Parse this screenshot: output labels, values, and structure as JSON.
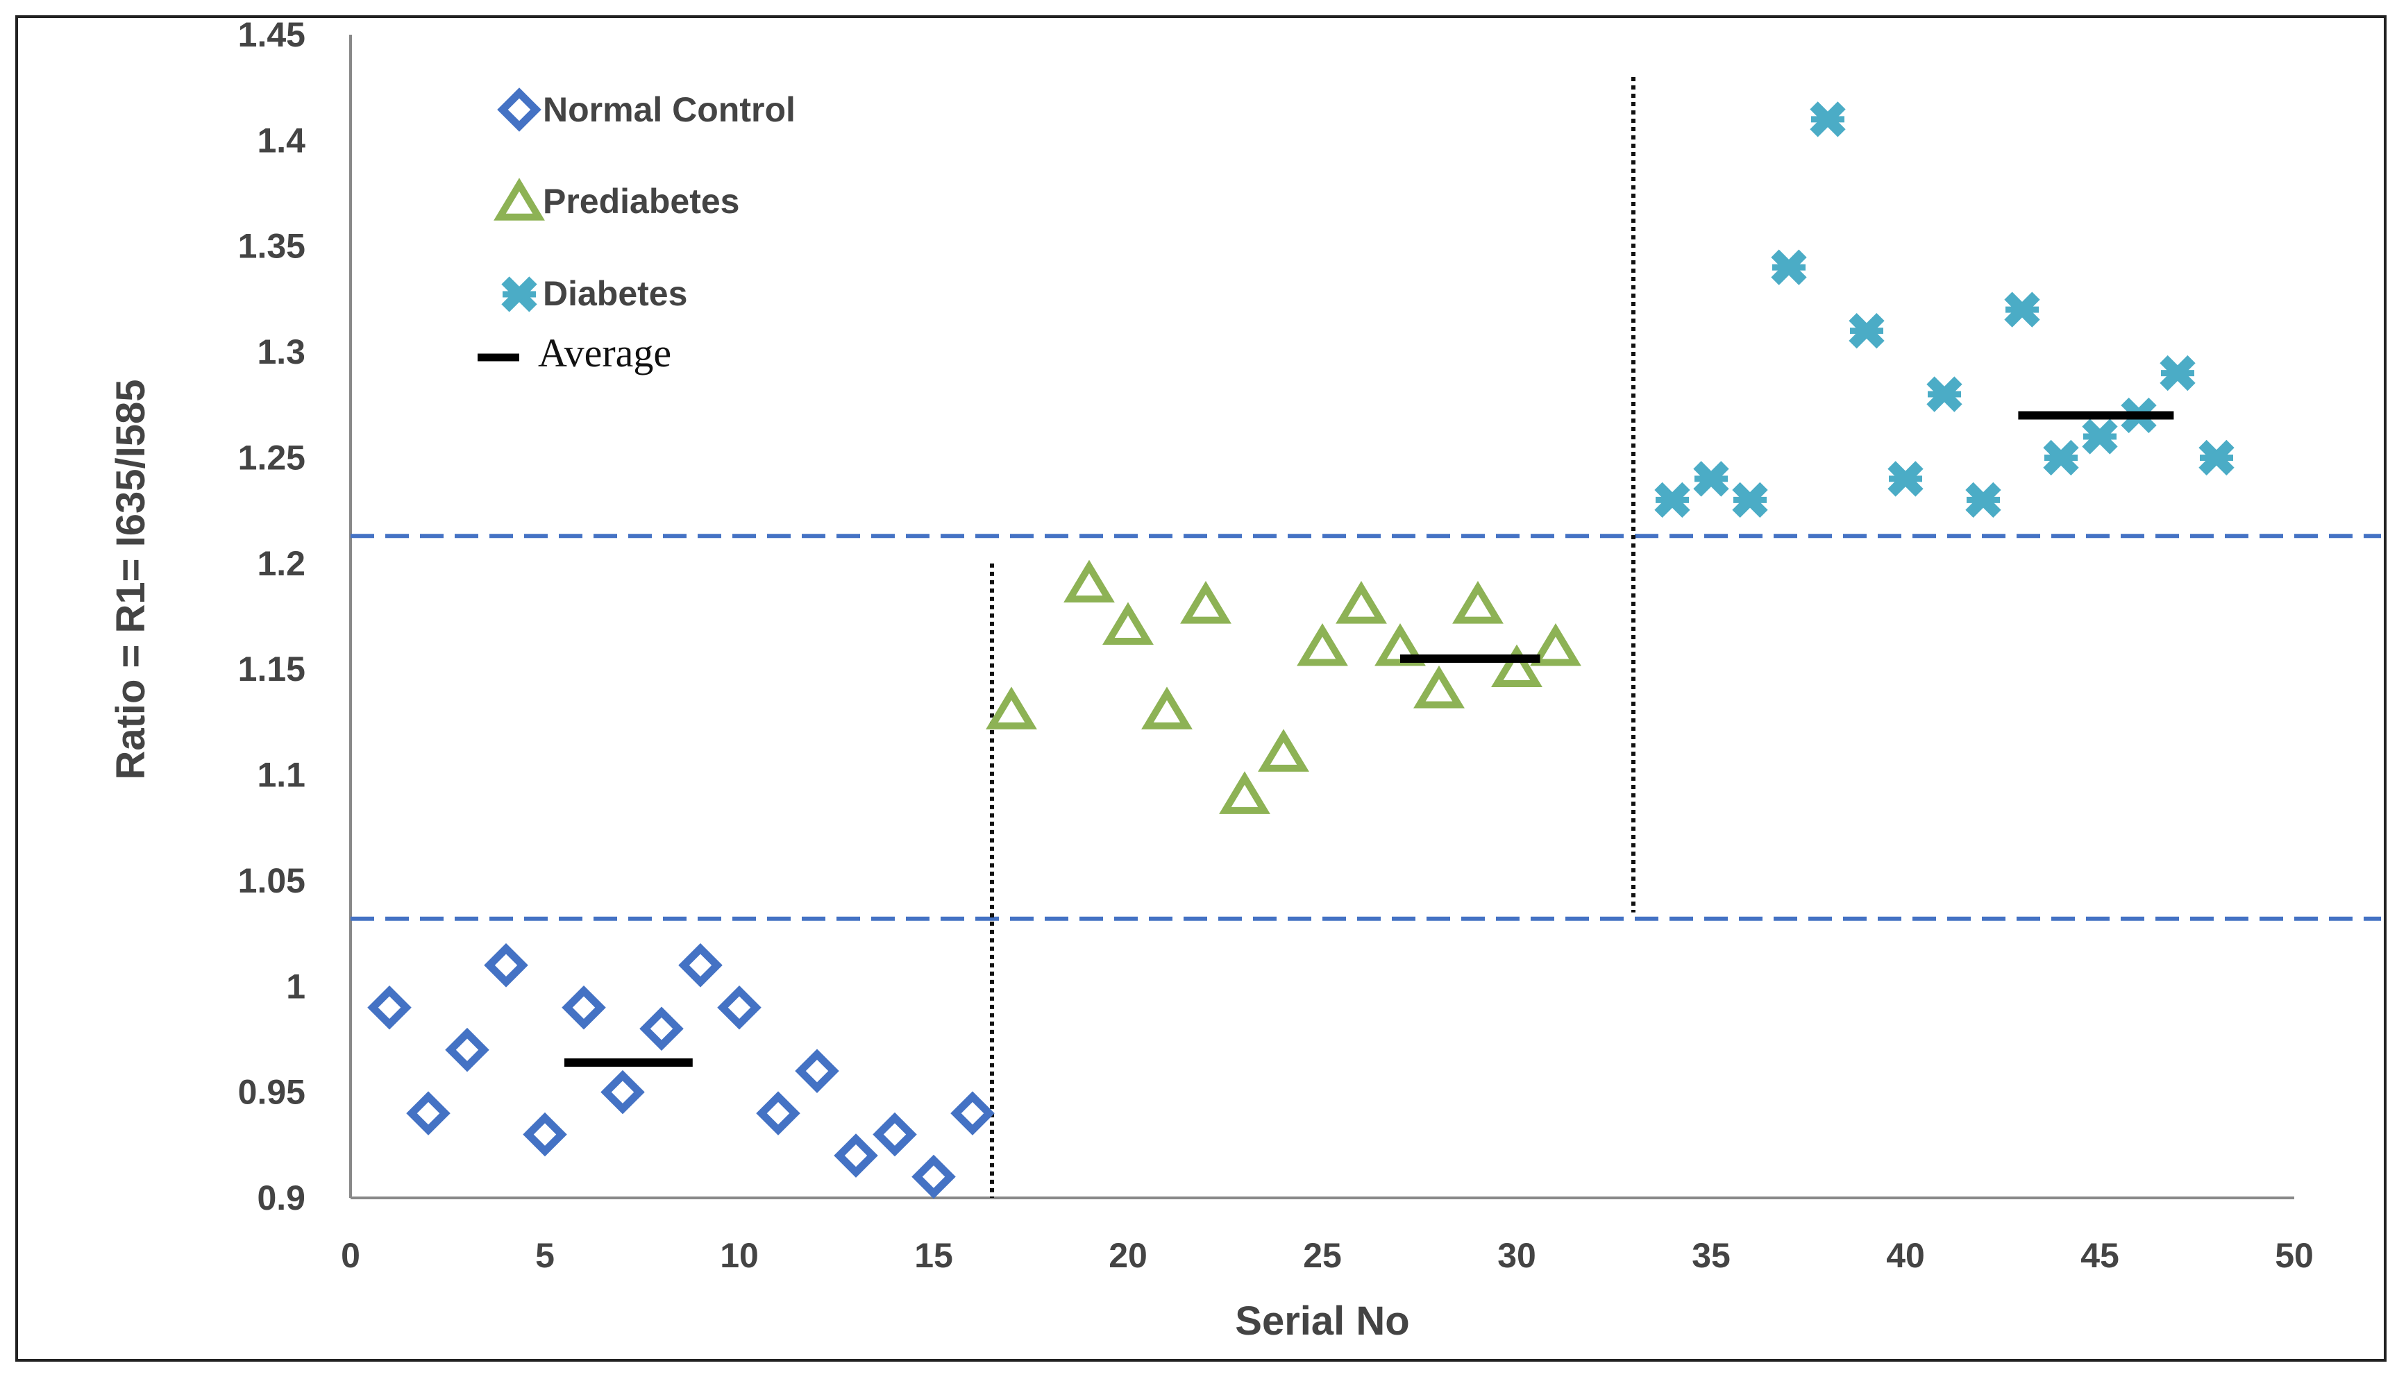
{
  "chart_data": {
    "type": "scatter",
    "title": "",
    "xlabel": "Serial No",
    "ylabel": "Ratio = R1= I635/I585",
    "xlim": [
      0,
      50
    ],
    "ylim": [
      0.9,
      1.45
    ],
    "xticks": [
      0,
      5,
      10,
      15,
      20,
      25,
      30,
      35,
      40,
      45,
      50
    ],
    "yticks": [
      0.9,
      0.95,
      1,
      1.05,
      1.1,
      1.15,
      1.2,
      1.25,
      1.3,
      1.35,
      1.4,
      1.45
    ],
    "grid": false,
    "legend_position": "top-left",
    "series": [
      {
        "name": "Normal Control",
        "marker": "diamond",
        "color": "#4472c4",
        "x": [
          1,
          2,
          3,
          4,
          5,
          6,
          7,
          8,
          9,
          10,
          11,
          12,
          13,
          14,
          15,
          16
        ],
        "y": [
          0.99,
          0.94,
          0.97,
          1.01,
          0.93,
          0.99,
          0.95,
          0.98,
          1.01,
          0.99,
          0.94,
          0.96,
          0.92,
          0.93,
          0.91,
          0.94
        ]
      },
      {
        "name": "Prediabetes",
        "marker": "triangle",
        "color": "#8db255",
        "x": [
          17,
          19,
          20,
          21,
          22,
          23,
          24,
          25,
          26,
          27,
          28,
          29,
          30,
          31
        ],
        "y": [
          1.13,
          1.19,
          1.17,
          1.13,
          1.18,
          1.09,
          1.11,
          1.16,
          1.18,
          1.16,
          1.14,
          1.18,
          1.15,
          1.16
        ]
      },
      {
        "name": "Diabetes",
        "marker": "star",
        "color": "#4bacc6",
        "x": [
          34,
          35,
          36,
          37,
          38,
          39,
          40,
          41,
          42,
          43,
          44,
          45,
          46,
          47,
          48
        ],
        "y": [
          1.23,
          1.24,
          1.23,
          1.34,
          1.41,
          1.31,
          1.24,
          1.28,
          1.23,
          1.32,
          1.25,
          1.26,
          1.27,
          1.29,
          1.25
        ]
      }
    ],
    "averages": [
      {
        "group": "Normal Control",
        "x_from": 5.5,
        "x_to": 8.8,
        "y": 0.964
      },
      {
        "group": "Prediabetes",
        "x_from": 27,
        "x_to": 30.6,
        "y": 1.155
      },
      {
        "group": "Diabetes",
        "x_from": 42.9,
        "x_to": 46.9,
        "y": 1.27
      }
    ],
    "threshold_lines": [
      {
        "style": "dashed",
        "color": "#4472c4",
        "y": 1.032
      },
      {
        "style": "dashed",
        "color": "#4472c4",
        "y": 1.213
      }
    ],
    "group_separators": [
      {
        "style": "dotted",
        "color": "#111111",
        "x": 16.5,
        "y_from": 0.9,
        "y_to": 1.2
      },
      {
        "style": "dotted",
        "color": "#111111",
        "x": 33,
        "y_from": 1.035,
        "y_to": 1.43
      }
    ],
    "legend": [
      {
        "label": "Normal Control",
        "marker": "diamond"
      },
      {
        "label": "Prediabetes",
        "marker": "triangle"
      },
      {
        "label": "Diabetes",
        "marker": "star"
      },
      {
        "label": "Average",
        "marker": "line"
      }
    ]
  }
}
